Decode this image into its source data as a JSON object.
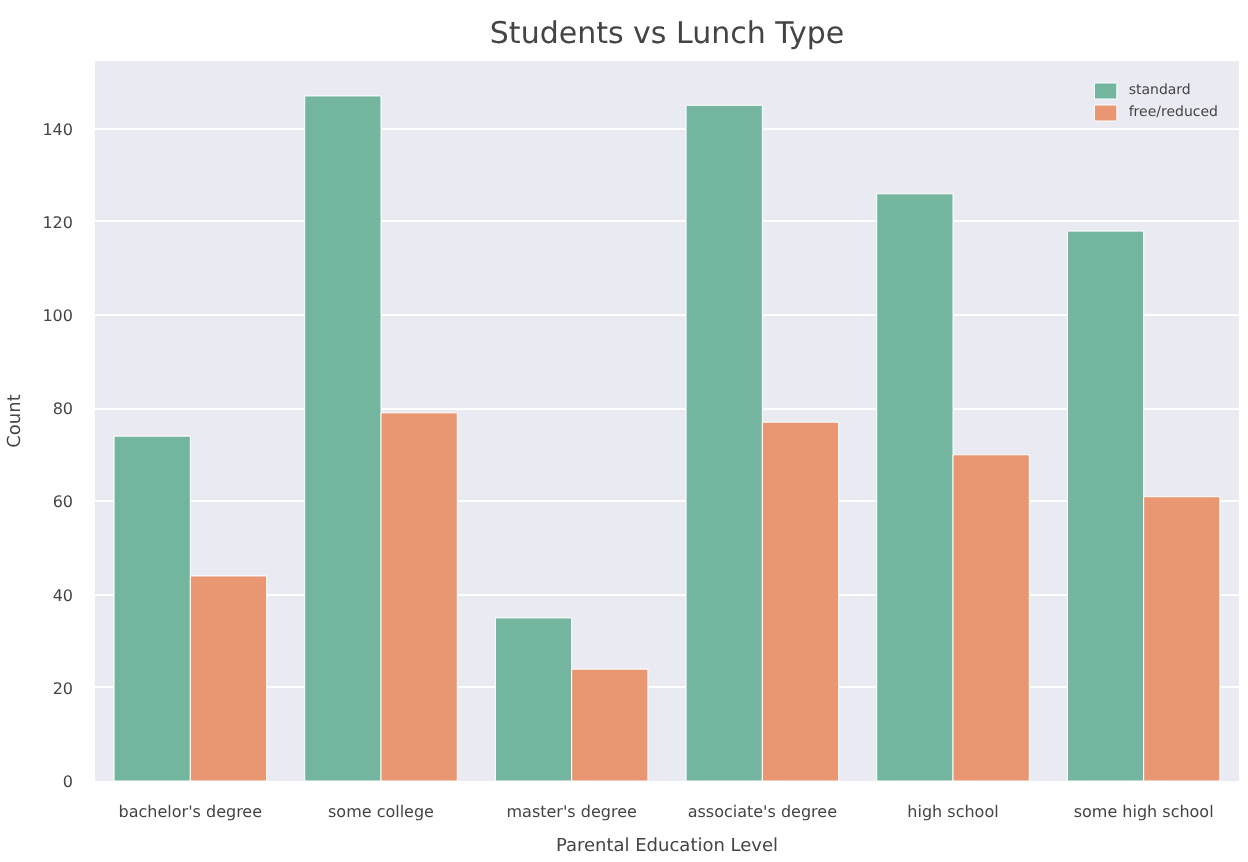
{
  "chart_data": {
    "type": "bar",
    "title": "Students vs Lunch Type",
    "xlabel": "Parental Education Level",
    "ylabel": "Count",
    "categories": [
      "bachelor's degree",
      "some college",
      "master's degree",
      "associate's degree",
      "high school",
      "some high school"
    ],
    "series": [
      {
        "name": "standard",
        "color": "#73b59f",
        "values": [
          74,
          147,
          35,
          145,
          126,
          118
        ]
      },
      {
        "name": "free/reduced",
        "color": "#e99673",
        "values": [
          44,
          79,
          24,
          77,
          70,
          61
        ]
      }
    ],
    "ylim": [
      0,
      154.5
    ],
    "yticks": [
      0,
      20,
      40,
      60,
      80,
      100,
      120,
      140
    ],
    "grid": "y",
    "legend": "top right"
  }
}
